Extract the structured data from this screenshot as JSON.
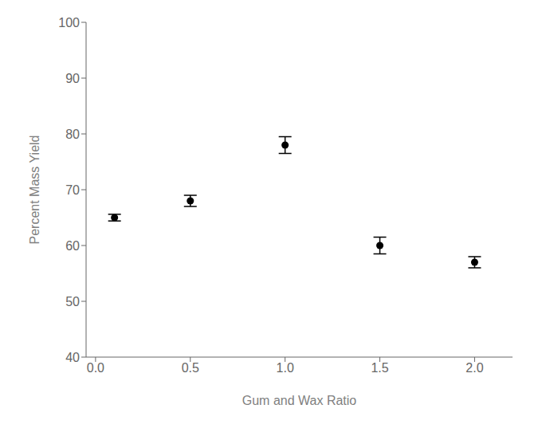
{
  "chart_data": {
    "type": "scatter",
    "xlabel": "Gum and Wax Ratio",
    "ylabel": "Percent Mass Yield",
    "x": [
      0.1,
      0.5,
      1.0,
      1.5,
      2.0
    ],
    "y": [
      65.0,
      68.0,
      78.0,
      60.0,
      57.0
    ],
    "yerr": [
      0.6,
      1.0,
      1.5,
      1.5,
      1.0
    ],
    "xlim": [
      -0.05,
      2.2
    ],
    "ylim": [
      40,
      100
    ],
    "xticks": [
      {
        "value": 0.0,
        "label": "0.0"
      },
      0.5,
      {
        "value": 1.0,
        "label": "1.0"
      },
      1.5,
      {
        "value": 2.0,
        "label": "2.0"
      }
    ],
    "yticks": [
      40,
      50,
      60,
      70,
      80,
      90,
      100
    ],
    "marker": "o",
    "color": "black",
    "grid": false
  }
}
